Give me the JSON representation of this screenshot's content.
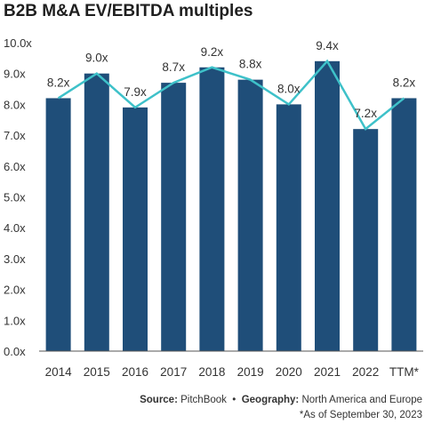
{
  "chart_data": {
    "type": "bar",
    "title": "B2B M&A EV/EBITDA multiples",
    "categories": [
      "2014",
      "2015",
      "2016",
      "2017",
      "2018",
      "2019",
      "2020",
      "2021",
      "2022",
      "TTM*"
    ],
    "values": [
      8.2,
      9.0,
      7.9,
      8.7,
      9.2,
      8.8,
      8.0,
      9.4,
      7.2,
      8.2
    ],
    "data_labels": [
      "8.2x",
      "9.0x",
      "7.9x",
      "8.7x",
      "9.2x",
      "8.8x",
      "8.0x",
      "9.4x",
      "7.2x",
      "8.2x"
    ],
    "line_values": [
      8.2,
      9.0,
      7.9,
      8.7,
      9.2,
      8.8,
      8.0,
      9.4,
      7.2,
      8.2
    ],
    "ylim": [
      0,
      10
    ],
    "yticks": [
      "0.0x",
      "1.0x",
      "2.0x",
      "3.0x",
      "4.0x",
      "5.0x",
      "6.0x",
      "7.0x",
      "8.0x",
      "9.0x",
      "10.0x"
    ],
    "grid": false,
    "colors": {
      "bar": "#1f4e79",
      "line": "#3ec1c9"
    }
  },
  "footer": {
    "source_label": "Source:",
    "source_value": "PitchBook",
    "separator": "•",
    "geography_label": "Geography:",
    "geography_value": "North America and Europe",
    "note": "*As of September 30, 2023"
  }
}
